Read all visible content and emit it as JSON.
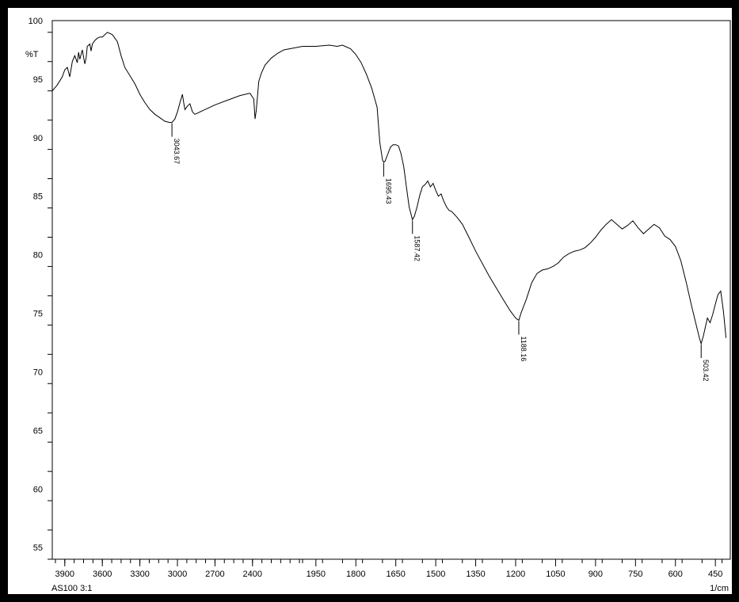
{
  "chart_data": {
    "type": "line",
    "ylabel": "%T",
    "xlabel": "1/cm",
    "sample_label": "AS100 3:1",
    "xlim": [
      4000,
      400
    ],
    "ylim": [
      54,
      100
    ],
    "x_major_ticks": [
      3900,
      3600,
      3300,
      3000,
      2700,
      2400,
      1950,
      1800,
      1650,
      1500,
      1350,
      1200,
      1050,
      900,
      750,
      600,
      450
    ],
    "y_major_ticks": [
      100,
      95,
      90,
      85,
      80,
      75,
      70,
      65,
      60,
      55
    ],
    "grid": false,
    "peaks": [
      {
        "x": 3043.67,
        "y": 91.3,
        "label": "3043.67"
      },
      {
        "x": 1695.43,
        "y": 87.9,
        "label": "1695.43"
      },
      {
        "x": 1587.42,
        "y": 83.0,
        "label": "1587.42"
      },
      {
        "x": 1188.16,
        "y": 74.4,
        "label": "1188.16"
      },
      {
        "x": 503.42,
        "y": 72.4,
        "label": "503.42"
      }
    ],
    "series": [
      {
        "x": [
          4000,
          3960,
          3920,
          3900,
          3880,
          3860,
          3840,
          3820,
          3800,
          3790,
          3780,
          3760,
          3740,
          3730,
          3720,
          3700,
          3690,
          3680,
          3660,
          3640,
          3620,
          3600,
          3580,
          3560,
          3520,
          3480,
          3450,
          3420,
          3380,
          3340,
          3300,
          3260,
          3220,
          3180,
          3140,
          3100,
          3060,
          3043.67,
          3020,
          3000,
          2980,
          2960,
          2950,
          2940,
          2920,
          2900,
          2880,
          2860,
          2840,
          2800,
          2700,
          2600,
          2500,
          2420,
          2390,
          2380,
          2370,
          2350,
          2330,
          2300,
          2250,
          2200,
          2150,
          2100,
          2050,
          2000,
          1950,
          1900,
          1870,
          1850,
          1820,
          1800,
          1780,
          1760,
          1740,
          1720,
          1710,
          1700,
          1695.43,
          1690,
          1680,
          1670,
          1660,
          1650,
          1640,
          1630,
          1620,
          1610,
          1600,
          1590,
          1587.42,
          1580,
          1570,
          1560,
          1550,
          1540,
          1530,
          1520,
          1510,
          1500,
          1490,
          1480,
          1470,
          1460,
          1450,
          1440,
          1420,
          1400,
          1380,
          1350,
          1300,
          1250,
          1220,
          1200,
          1188.16,
          1180,
          1160,
          1140,
          1120,
          1100,
          1080,
          1060,
          1040,
          1020,
          1000,
          980,
          960,
          940,
          920,
          900,
          880,
          860,
          840,
          820,
          800,
          780,
          760,
          740,
          720,
          700,
          680,
          660,
          640,
          620,
          600,
          580,
          560,
          540,
          520,
          510,
          503.42,
          495,
          480,
          470,
          460,
          450,
          440,
          430,
          420,
          410
        ],
        "y": [
          94.0,
          94.5,
          95.2,
          95.8,
          96.0,
          95.2,
          96.5,
          97.0,
          96.4,
          97.3,
          96.7,
          97.5,
          96.3,
          96.8,
          97.8,
          98.0,
          97.4,
          98.0,
          98.3,
          98.5,
          98.6,
          98.6,
          98.8,
          99.0,
          98.8,
          98.2,
          97.0,
          96.0,
          95.3,
          94.6,
          93.7,
          93.0,
          92.4,
          92.0,
          91.7,
          91.4,
          91.3,
          91.3,
          91.6,
          92.2,
          93.0,
          93.7,
          93.0,
          92.4,
          92.7,
          92.9,
          92.2,
          92.0,
          92.1,
          92.3,
          92.8,
          93.2,
          93.6,
          93.8,
          93.3,
          91.6,
          92.3,
          94.8,
          95.5,
          96.2,
          96.8,
          97.2,
          97.5,
          97.6,
          97.7,
          97.8,
          97.8,
          97.9,
          97.8,
          97.9,
          97.6,
          97.1,
          96.4,
          95.4,
          94.2,
          92.6,
          89.6,
          88.1,
          87.9,
          88.0,
          88.6,
          89.2,
          89.4,
          89.4,
          89.3,
          88.6,
          87.5,
          85.8,
          84.1,
          83.2,
          83.0,
          83.3,
          84.1,
          85.1,
          85.8,
          86.0,
          86.3,
          85.8,
          86.1,
          85.5,
          85.0,
          85.2,
          84.6,
          84.1,
          83.8,
          83.7,
          83.2,
          82.6,
          81.7,
          80.3,
          78.2,
          76.3,
          75.2,
          74.6,
          74.4,
          75.0,
          76.2,
          77.6,
          78.4,
          78.7,
          78.8,
          79.0,
          79.3,
          79.8,
          80.1,
          80.3,
          80.4,
          80.6,
          81.0,
          81.5,
          82.1,
          82.6,
          83.0,
          82.6,
          82.2,
          82.5,
          82.9,
          82.3,
          81.8,
          82.2,
          82.6,
          82.3,
          81.6,
          81.3,
          80.7,
          79.5,
          77.7,
          75.7,
          73.8,
          72.9,
          72.4,
          73.1,
          74.6,
          74.2,
          74.9,
          75.8,
          76.6,
          76.9,
          75.2,
          72.9
        ]
      }
    ]
  }
}
